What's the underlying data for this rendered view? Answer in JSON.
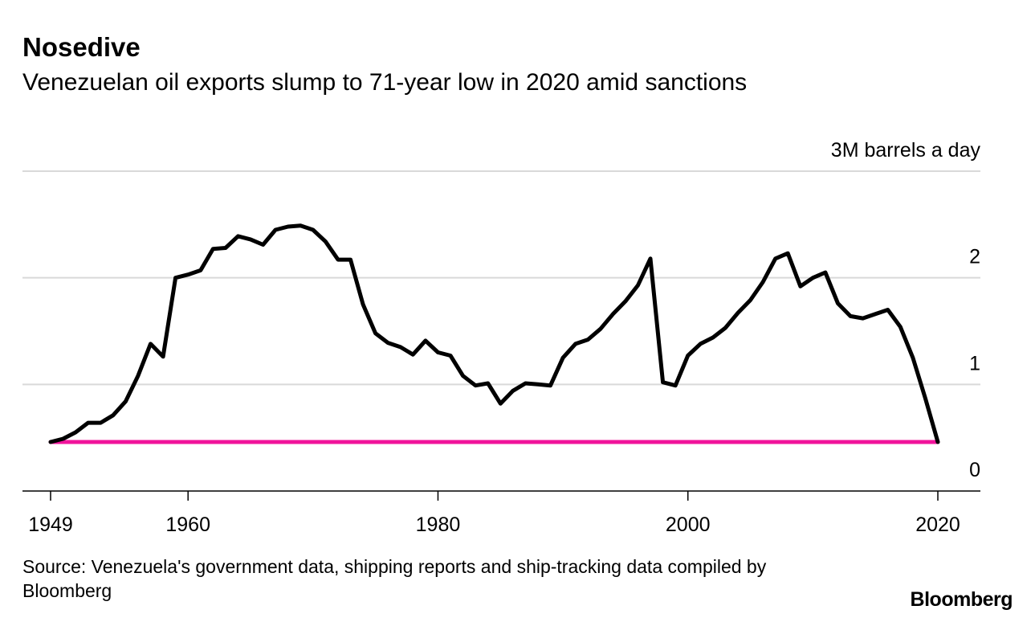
{
  "header": {
    "title": "Nosedive",
    "subtitle": "Venezuelan oil exports slump to 71-year low in 2020 amid sanctions"
  },
  "footer": {
    "source": "Source: Venezuela's government data, shipping reports and ship-tracking data compiled by Bloomberg",
    "brand": "Bloomberg"
  },
  "chart_data": {
    "type": "line",
    "title": "Nosedive",
    "subtitle": "Venezuelan oil exports slump to 71-year low in 2020 amid sanctions",
    "unit_label": "3M barrels a day",
    "xlim": [
      1949,
      2020
    ],
    "ylim": [
      0,
      3
    ],
    "x_ticks": [
      1949,
      1960,
      1980,
      2000,
      2020
    ],
    "x_tick_labels": [
      "1949",
      "1960",
      "1980",
      "2000",
      "2020"
    ],
    "y_ticks": [
      0,
      1,
      2,
      3
    ],
    "y_tick_labels": [
      "0",
      "1",
      "2",
      "3M barrels a day"
    ],
    "grid": true,
    "series": [
      {
        "color": "#000000",
        "x": [
          1949,
          1950,
          1951,
          1952,
          1953,
          1954,
          1955,
          1956,
          1957,
          1958,
          1959,
          1960,
          1961,
          1962,
          1963,
          1964,
          1965,
          1966,
          1967,
          1968,
          1969,
          1970,
          1971,
          1972,
          1973,
          1974,
          1975,
          1976,
          1977,
          1978,
          1979,
          1980,
          1981,
          1982,
          1983,
          1984,
          1985,
          1986,
          1987,
          1988,
          1989,
          1990,
          1991,
          1992,
          1993,
          1994,
          1995,
          1996,
          1997,
          1998,
          1999,
          2000,
          2001,
          2002,
          2003,
          2004,
          2005,
          2006,
          2007,
          2008,
          2009,
          2010,
          2011,
          2012,
          2013,
          2014,
          2015,
          2016,
          2017,
          2018,
          2019,
          2020
        ],
        "y": [
          0.46,
          0.49,
          0.55,
          0.64,
          0.64,
          0.71,
          0.84,
          1.08,
          1.38,
          1.26,
          2.0,
          2.03,
          2.07,
          2.27,
          2.28,
          2.39,
          2.36,
          2.31,
          2.45,
          2.48,
          2.49,
          2.45,
          2.34,
          2.17,
          2.17,
          1.75,
          1.48,
          1.39,
          1.35,
          1.28,
          1.41,
          1.3,
          1.27,
          1.08,
          0.99,
          1.01,
          0.82,
          0.94,
          1.01,
          1.0,
          0.99,
          1.25,
          1.38,
          1.42,
          1.52,
          1.66,
          1.78,
          1.93,
          2.18,
          1.02,
          0.99,
          1.27,
          1.38,
          1.44,
          1.53,
          1.67,
          1.79,
          1.96,
          2.18,
          2.23,
          1.92,
          2.0,
          2.05,
          1.76,
          1.64,
          1.62,
          1.66,
          1.7,
          1.54,
          1.25,
          0.87,
          0.46
        ]
      },
      {
        "color": "#f0149b",
        "x": [
          1949,
          2020
        ],
        "y": [
          0.46,
          0.46
        ]
      }
    ]
  }
}
